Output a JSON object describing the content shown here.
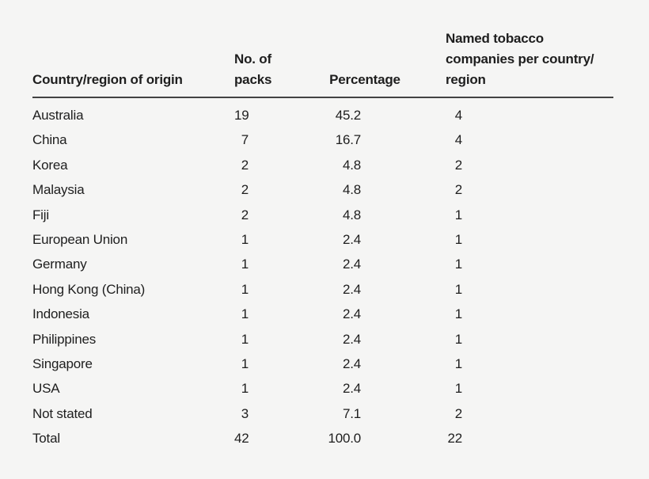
{
  "colors": {
    "background": "#f5f5f4",
    "text": "#1e1e1e",
    "rule": "#434343"
  },
  "table": {
    "columns": [
      {
        "label": "Country/region of origin"
      },
      {
        "label": "No. of\npacks"
      },
      {
        "label": "Percentage"
      },
      {
        "label": "Named tobacco\ncompanies per country/\nregion"
      }
    ],
    "rows": [
      {
        "country": "Australia",
        "packs": "19",
        "percentage": "45.2",
        "companies": "4"
      },
      {
        "country": "China",
        "packs": "7",
        "percentage": "16.7",
        "companies": "4"
      },
      {
        "country": "Korea",
        "packs": "2",
        "percentage": "4.8",
        "companies": "2"
      },
      {
        "country": "Malaysia",
        "packs": "2",
        "percentage": "4.8",
        "companies": "2"
      },
      {
        "country": "Fiji",
        "packs": "2",
        "percentage": "4.8",
        "companies": "1"
      },
      {
        "country": "European Union",
        "packs": "1",
        "percentage": "2.4",
        "companies": "1"
      },
      {
        "country": "Germany",
        "packs": "1",
        "percentage": "2.4",
        "companies": "1"
      },
      {
        "country": "Hong Kong (China)",
        "packs": "1",
        "percentage": "2.4",
        "companies": "1"
      },
      {
        "country": "Indonesia",
        "packs": "1",
        "percentage": "2.4",
        "companies": "1"
      },
      {
        "country": "Philippines",
        "packs": "1",
        "percentage": "2.4",
        "companies": "1"
      },
      {
        "country": "Singapore",
        "packs": "1",
        "percentage": "2.4",
        "companies": "1"
      },
      {
        "country": "USA",
        "packs": "1",
        "percentage": "2.4",
        "companies": "1"
      },
      {
        "country": "Not stated",
        "packs": "3",
        "percentage": "7.1",
        "companies": "2"
      }
    ],
    "total": {
      "country": "Total",
      "packs": "42",
      "percentage": "100.0",
      "companies": "22"
    }
  }
}
